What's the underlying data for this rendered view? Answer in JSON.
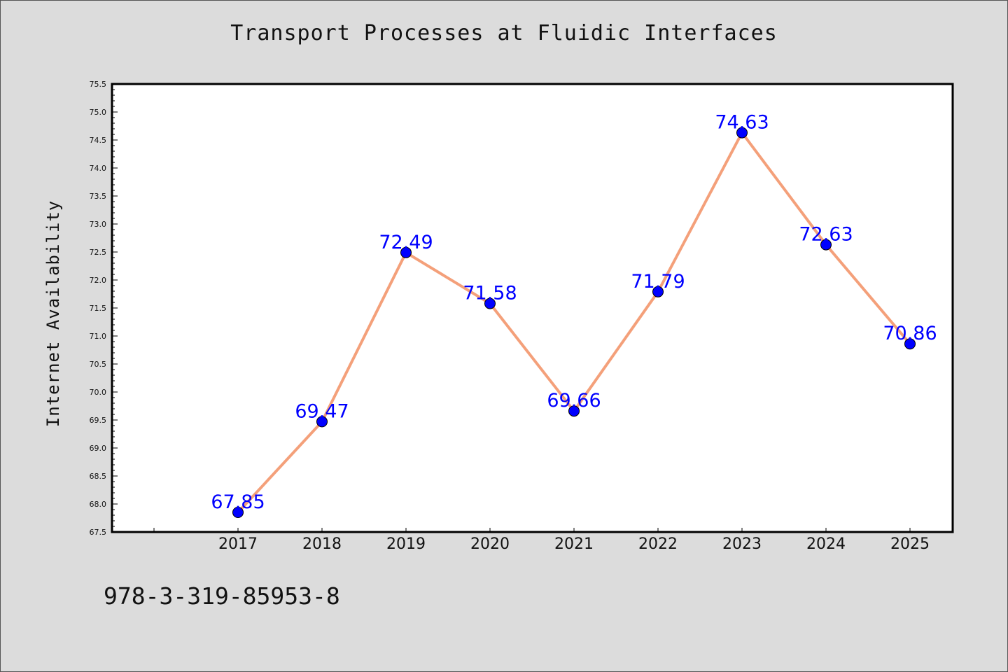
{
  "chart_data": {
    "type": "line",
    "title": "Transport Processes at Fluidic Interfaces",
    "xlabel": "",
    "ylabel": "Internet Availability",
    "categories": [
      "2017",
      "2018",
      "2019",
      "2020",
      "2021",
      "2022",
      "2023",
      "2024",
      "2025"
    ],
    "series": [
      {
        "values": [
          67.85,
          69.47,
          72.49,
          71.58,
          69.66,
          71.79,
          74.63,
          72.63,
          70.86
        ],
        "data_labels": [
          "67.85",
          "69.47",
          "72.49",
          "71.58",
          "69.66",
          "71.79",
          "74.63",
          "72.63",
          "70.86"
        ]
      }
    ],
    "ylim": [
      67.5,
      75.5
    ],
    "y_ticks": [
      "67.5",
      "68.0",
      "68.5",
      "69.0",
      "69.5",
      "70.0",
      "70.5",
      "71.0",
      "71.5",
      "72.0",
      "72.5",
      "73.0",
      "73.5",
      "74.0",
      "74.5",
      "75.0",
      "75.5"
    ],
    "grid": false,
    "legend": "none",
    "colors": {
      "line": "#f4a07a",
      "marker": "#0000ff",
      "data_label": "#0000ff",
      "plot_background": "#ffffff",
      "figure_background": "#dcdcdc"
    }
  },
  "footer": {
    "code": "978-3-319-85953-8"
  }
}
